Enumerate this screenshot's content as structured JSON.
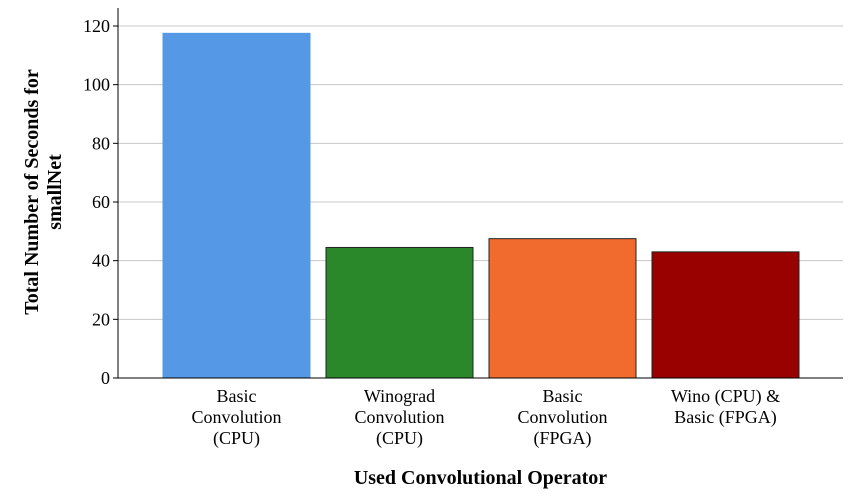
{
  "chart_data": {
    "type": "bar",
    "title": "",
    "xlabel": "Used Convolutional Operator",
    "ylabel_lines": [
      "Total Number of Seconds for",
      "smallNet"
    ],
    "categories": [
      [
        "Basic",
        "Convolution",
        "(CPU)"
      ],
      [
        "Winograd",
        "Convolution",
        "(CPU)"
      ],
      [
        "Basic",
        "Convolution",
        "(FPGA)"
      ],
      [
        "Wino (CPU) &",
        "Basic (FPGA)"
      ]
    ],
    "values": [
      117.5,
      44.5,
      47.5,
      43
    ],
    "colors": [
      "#5599e6",
      "#2a882a",
      "#f26b2e",
      "#990000"
    ],
    "ylim": [
      0,
      120
    ],
    "yticks": [
      0,
      20,
      40,
      60,
      80,
      100,
      120
    ],
    "grid": true,
    "legend": "none"
  }
}
